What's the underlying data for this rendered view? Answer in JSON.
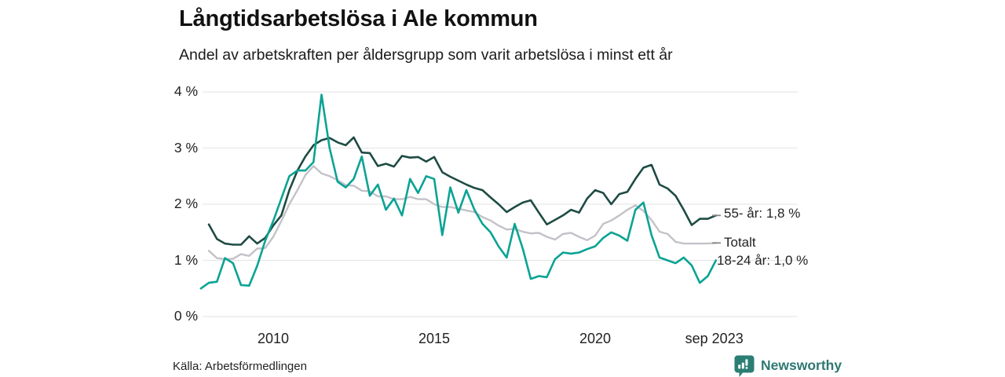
{
  "header": {
    "title": "Långtidsarbetslösa i Ale kommun",
    "subtitle": "Andel av arbetskraften per åldersgrupp som varit arbetslösa i minst ett år"
  },
  "footer": {
    "source": "Källa: Arbetsförmedlingen",
    "brand": "Newsworthy",
    "brand_color": "#2b7e74"
  },
  "chart_data": {
    "type": "line",
    "title": "Långtidsarbetslösa i Ale kommun",
    "subtitle": "Andel av arbetskraften per åldersgrupp som varit arbetslösa i minst ett år",
    "x_unit": "decimal_year",
    "xlim": [
      2007.75,
      2023.75
    ],
    "ylim": [
      0,
      4
    ],
    "grid": true,
    "grid_color": "#e7e7e7",
    "end_tick_color": "#888888",
    "x_ticks": [
      {
        "t": 2010,
        "label": "2010"
      },
      {
        "t": 2015,
        "label": "2015"
      },
      {
        "t": 2020,
        "label": "2020"
      },
      {
        "t": 2023.7,
        "label": "sep 2023"
      }
    ],
    "y_ticks": [
      {
        "v": 0,
        "label": "0 %"
      },
      {
        "v": 1,
        "label": "1 %"
      },
      {
        "v": 2,
        "label": "2 %"
      },
      {
        "v": 3,
        "label": "3 %"
      },
      {
        "v": 4,
        "label": "4 %"
      }
    ],
    "x": [
      2007.75,
      2008,
      2008.25,
      2008.5,
      2008.75,
      2009,
      2009.25,
      2009.5,
      2009.75,
      2010,
      2010.25,
      2010.5,
      2010.75,
      2011,
      2011.25,
      2011.5,
      2011.75,
      2012,
      2012.25,
      2012.5,
      2012.75,
      2013,
      2013.25,
      2013.5,
      2013.75,
      2014,
      2014.25,
      2014.5,
      2014.75,
      2015,
      2015.25,
      2015.5,
      2015.75,
      2016,
      2016.25,
      2016.5,
      2016.75,
      2017,
      2017.25,
      2017.5,
      2017.75,
      2018,
      2018.25,
      2018.5,
      2018.75,
      2019,
      2019.25,
      2019.5,
      2019.75,
      2020,
      2020.25,
      2020.5,
      2020.75,
      2021,
      2021.25,
      2021.5,
      2021.75,
      2022,
      2022.25,
      2022.5,
      2022.75,
      2023,
      2023.25,
      2023.5,
      2023.75
    ],
    "series": [
      {
        "name": "55- år",
        "end_label": "55- år: 1,8 %",
        "end_value_text": "1,8 %",
        "color": "#1e4b43",
        "line_width": 2.6,
        "end_tick": true,
        "values": [
          null,
          1.64,
          1.38,
          1.3,
          1.28,
          1.28,
          1.43,
          1.3,
          1.4,
          1.62,
          1.8,
          2.25,
          2.6,
          2.85,
          3.05,
          3.14,
          3.18,
          3.1,
          3.05,
          3.19,
          2.92,
          2.91,
          2.68,
          2.72,
          2.67,
          2.86,
          2.83,
          2.84,
          2.76,
          2.84,
          2.57,
          2.49,
          2.42,
          2.35,
          2.29,
          2.25,
          2.12,
          2.0,
          1.86,
          1.95,
          2.03,
          2.07,
          1.85,
          1.64,
          1.72,
          1.8,
          1.9,
          1.85,
          2.1,
          2.25,
          2.2,
          2.0,
          2.18,
          2.22,
          2.45,
          2.65,
          2.7,
          2.35,
          2.28,
          2.15,
          1.9,
          1.63,
          1.74,
          1.74,
          1.8
        ]
      },
      {
        "name": "Totalt",
        "end_label": "Totalt",
        "end_value_text": "",
        "color": "#c3c2c8",
        "line_width": 2.4,
        "end_tick": true,
        "values": [
          null,
          1.17,
          1.04,
          1.02,
          1.03,
          1.11,
          1.08,
          1.21,
          1.22,
          1.42,
          1.7,
          2.0,
          2.25,
          2.52,
          2.68,
          2.55,
          2.5,
          2.43,
          2.34,
          2.33,
          2.24,
          2.23,
          2.14,
          2.14,
          2.09,
          2.09,
          2.13,
          2.09,
          2.09,
          2.0,
          1.95,
          1.95,
          1.92,
          1.89,
          1.86,
          1.77,
          1.71,
          1.62,
          1.55,
          1.56,
          1.51,
          1.48,
          1.49,
          1.42,
          1.37,
          1.47,
          1.49,
          1.42,
          1.36,
          1.44,
          1.65,
          1.71,
          1.8,
          1.9,
          1.98,
          1.88,
          1.72,
          1.51,
          1.47,
          1.33,
          1.3,
          1.3,
          1.3,
          1.3,
          1.31
        ]
      },
      {
        "name": "18-24 år",
        "end_label": "18-24 år: 1,0 %",
        "end_value_text": "1,0 %",
        "color": "#0ba394",
        "line_width": 2.6,
        "end_tick": false,
        "values": [
          0.5,
          0.6,
          0.62,
          1.04,
          0.95,
          0.56,
          0.55,
          0.9,
          1.35,
          1.7,
          2.1,
          2.5,
          2.6,
          2.6,
          2.75,
          3.95,
          3.0,
          2.4,
          2.3,
          2.45,
          2.85,
          2.15,
          2.35,
          1.9,
          2.1,
          1.8,
          2.45,
          2.2,
          2.5,
          2.45,
          1.45,
          2.3,
          1.85,
          2.25,
          1.9,
          1.65,
          1.5,
          1.25,
          1.05,
          1.65,
          1.21,
          0.67,
          0.72,
          0.7,
          1.02,
          1.14,
          1.12,
          1.14,
          1.2,
          1.25,
          1.4,
          1.5,
          1.44,
          1.35,
          1.9,
          2.03,
          1.45,
          1.05,
          1.0,
          0.95,
          1.05,
          0.91,
          0.6,
          0.72,
          1.0
        ]
      }
    ]
  }
}
